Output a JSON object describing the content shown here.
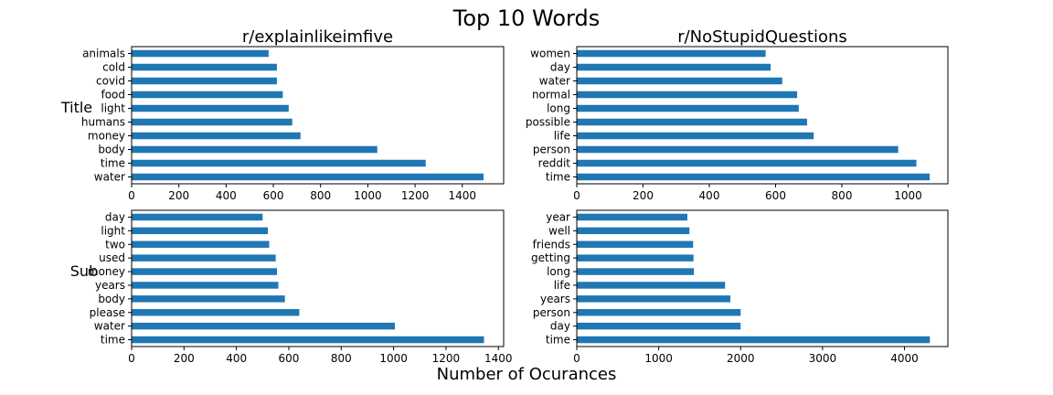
{
  "figure": {
    "title": "Top 10 Words",
    "xlabel": "Number of Ocurances",
    "row_labels": [
      "Title",
      "Sub"
    ],
    "bar_color": "#1f77b4"
  },
  "chart_data": [
    {
      "type": "bar",
      "orientation": "horizontal",
      "title": "r/explainlikeimfive",
      "ylabel": "Title",
      "xlabel": "",
      "categories": [
        "water",
        "time",
        "body",
        "money",
        "humans",
        "light",
        "food",
        "covid",
        "cold",
        "animals"
      ],
      "values": [
        1490,
        1245,
        1040,
        715,
        680,
        665,
        640,
        615,
        615,
        580
      ],
      "xlim": [
        0,
        1575
      ],
      "xticks": [
        0,
        200,
        400,
        600,
        800,
        1000,
        1200,
        1400
      ]
    },
    {
      "type": "bar",
      "orientation": "horizontal",
      "title": "r/NoStupidQuestions",
      "ylabel": "",
      "xlabel": "",
      "categories": [
        "time",
        "reddit",
        "person",
        "life",
        "possible",
        "long",
        "normal",
        "water",
        "day",
        "women"
      ],
      "values": [
        1065,
        1025,
        970,
        715,
        695,
        670,
        665,
        620,
        585,
        570
      ],
      "xlim": [
        0,
        1120
      ],
      "xticks": [
        0,
        200,
        400,
        600,
        800,
        1000
      ]
    },
    {
      "type": "bar",
      "orientation": "horizontal",
      "title": "",
      "ylabel": "Sub",
      "xlabel": "",
      "categories": [
        "time",
        "water",
        "please",
        "body",
        "years",
        "money",
        "used",
        "two",
        "light",
        "day"
      ],
      "values": [
        1345,
        1005,
        640,
        585,
        560,
        555,
        550,
        525,
        520,
        500
      ],
      "xlim": [
        0,
        1420
      ],
      "xticks": [
        0,
        200,
        400,
        600,
        800,
        1000,
        1200,
        1400
      ]
    },
    {
      "type": "bar",
      "orientation": "horizontal",
      "title": "",
      "ylabel": "",
      "xlabel": "",
      "categories": [
        "time",
        "day",
        "person",
        "years",
        "life",
        "long",
        "getting",
        "friends",
        "well",
        "year"
      ],
      "values": [
        4310,
        2000,
        2000,
        1875,
        1810,
        1430,
        1425,
        1420,
        1375,
        1350
      ],
      "xlim": [
        0,
        4530
      ],
      "xticks": [
        0,
        1000,
        2000,
        3000,
        4000
      ]
    }
  ]
}
